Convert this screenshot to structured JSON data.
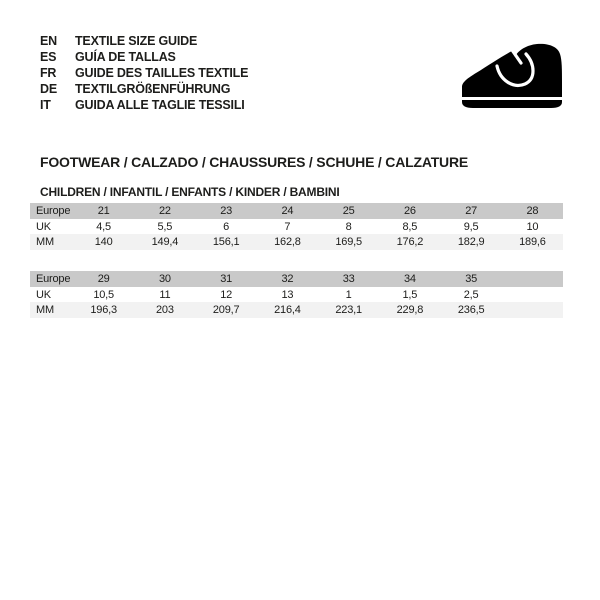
{
  "header": {
    "languages": [
      {
        "code": "EN",
        "title": "TEXTILE SIZE GUIDE"
      },
      {
        "code": "ES",
        "title": "GUÍA DE TALLAS"
      },
      {
        "code": "FR",
        "title": "GUIDE DES TAILLES TEXTILE"
      },
      {
        "code": "DE",
        "title": "TEXTILGRÖßENFÜHRUNG"
      },
      {
        "code": "IT",
        "title": "GUIDA ALLE TAGLIE TESSILI"
      }
    ],
    "logo": "shoe-icon"
  },
  "section": {
    "title": "FOOTWEAR / CALZADO / CHAUSSURES / SCHUHE / CALZATURE",
    "subtitle": "CHILDREN / INFANTIL / ENFANTS / KINDER / BAMBINI"
  },
  "colors": {
    "header_row_bg": "#c9c9c9",
    "mm_row_bg": "#f2f2f2",
    "text": "#1d1d1b",
    "logo": "#000000",
    "background": "#ffffff"
  },
  "tables": [
    {
      "rows": [
        {
          "label": "Europe",
          "values": [
            "21",
            "22",
            "23",
            "24",
            "25",
            "26",
            "27",
            "28"
          ]
        },
        {
          "label": "UK",
          "values": [
            "4,5",
            "5,5",
            "6",
            "7",
            "8",
            "8,5",
            "9,5",
            "10"
          ]
        },
        {
          "label": "MM",
          "values": [
            "140",
            "149,4",
            "156,1",
            "162,8",
            "169,5",
            "176,2",
            "182,9",
            "189,6"
          ]
        }
      ]
    },
    {
      "rows": [
        {
          "label": "Europe",
          "values": [
            "29",
            "30",
            "31",
            "32",
            "33",
            "34",
            "35",
            ""
          ]
        },
        {
          "label": "UK",
          "values": [
            "10,5",
            "11",
            "12",
            "13",
            "1",
            "1,5",
            "2,5",
            ""
          ]
        },
        {
          "label": "MM",
          "values": [
            "196,3",
            "203",
            "209,7",
            "216,4",
            "223,1",
            "229,8",
            "236,5",
            ""
          ]
        }
      ]
    }
  ]
}
